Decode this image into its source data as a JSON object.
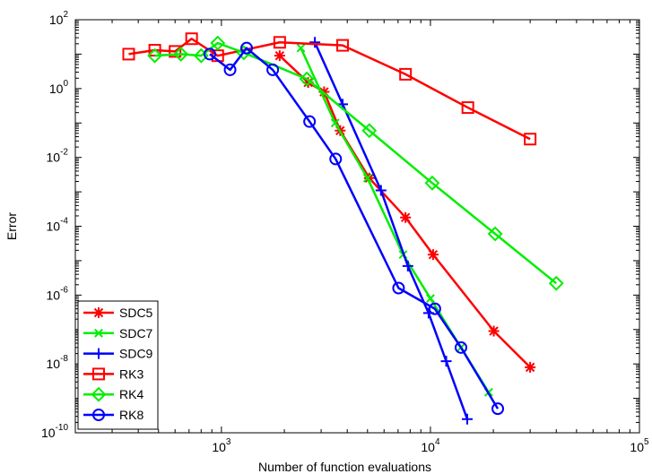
{
  "chart_data": {
    "type": "line",
    "xscale": "log",
    "yscale": "log",
    "xlim": [
      200,
      100000
    ],
    "ylim": [
      1e-10,
      100
    ],
    "xlabel": "Number of function evaluations",
    "ylabel": "Error",
    "grid": false,
    "legend_position": "bottom-left",
    "x_ticks": [
      {
        "value": 1000,
        "base": "10",
        "exp": "3"
      },
      {
        "value": 10000,
        "base": "10",
        "exp": "4"
      },
      {
        "value": 100000,
        "base": "10",
        "exp": "5"
      }
    ],
    "y_ticks": [
      {
        "value": 1e-10,
        "base": "10",
        "exp": "-10"
      },
      {
        "value": 1e-08,
        "base": "10",
        "exp": "-8"
      },
      {
        "value": 1e-06,
        "base": "10",
        "exp": "-6"
      },
      {
        "value": 0.0001,
        "base": "10",
        "exp": "-4"
      },
      {
        "value": 0.01,
        "base": "10",
        "exp": "-2"
      },
      {
        "value": 1,
        "base": "10",
        "exp": "0"
      },
      {
        "value": 100,
        "base": "10",
        "exp": "2"
      }
    ],
    "series": [
      {
        "name": "SDC5",
        "color": "#ff0000",
        "marker": "asterisk",
        "x": [
          1900,
          2600,
          3100,
          3700,
          5100,
          7600,
          10300,
          20100,
          30000
        ],
        "y": [
          9,
          1.5,
          0.8,
          0.06,
          0.0025,
          0.00018,
          1.5e-05,
          9e-08,
          8e-09
        ]
      },
      {
        "name": "SDC7",
        "color": "#00ee00",
        "marker": "x",
        "x": [
          2400,
          3500,
          5000,
          7400,
          10000,
          14000,
          19000
        ],
        "y": [
          15,
          0.1,
          0.0025,
          1.5e-05,
          8e-07,
          3e-08,
          1.5e-09
        ]
      },
      {
        "name": "SDC9",
        "color": "#0000ff",
        "marker": "plus",
        "x": [
          2800,
          3800,
          5800,
          7800,
          9800,
          11900,
          15000
        ],
        "y": [
          22,
          0.35,
          0.0011,
          7e-06,
          3e-07,
          1.2e-08,
          2.5e-10
        ]
      },
      {
        "name": "RK3",
        "color": "#ff0000",
        "marker": "square",
        "x": [
          360,
          480,
          600,
          720,
          960,
          1900,
          3800,
          7600,
          15100,
          30000
        ],
        "y": [
          10,
          13,
          12,
          28,
          9,
          22,
          18,
          2.6,
          0.28,
          0.034
        ]
      },
      {
        "name": "RK4",
        "color": "#00ee00",
        "marker": "diamond",
        "x": [
          480,
          640,
          800,
          960,
          1280,
          2560,
          5100,
          10200,
          20400,
          40000
        ],
        "y": [
          9,
          10,
          9,
          21,
          11,
          1.9,
          0.06,
          0.0018,
          6e-05,
          2.2e-06
        ]
      },
      {
        "name": "RK8",
        "color": "#0000ff",
        "marker": "circle",
        "x": [
          880,
          1100,
          1320,
          1760,
          2640,
          3520,
          7040,
          10500,
          14000,
          21000
        ],
        "y": [
          10,
          3.5,
          15,
          3.5,
          0.11,
          0.009,
          1.6e-06,
          4e-07,
          3e-08,
          5e-10
        ]
      }
    ]
  }
}
